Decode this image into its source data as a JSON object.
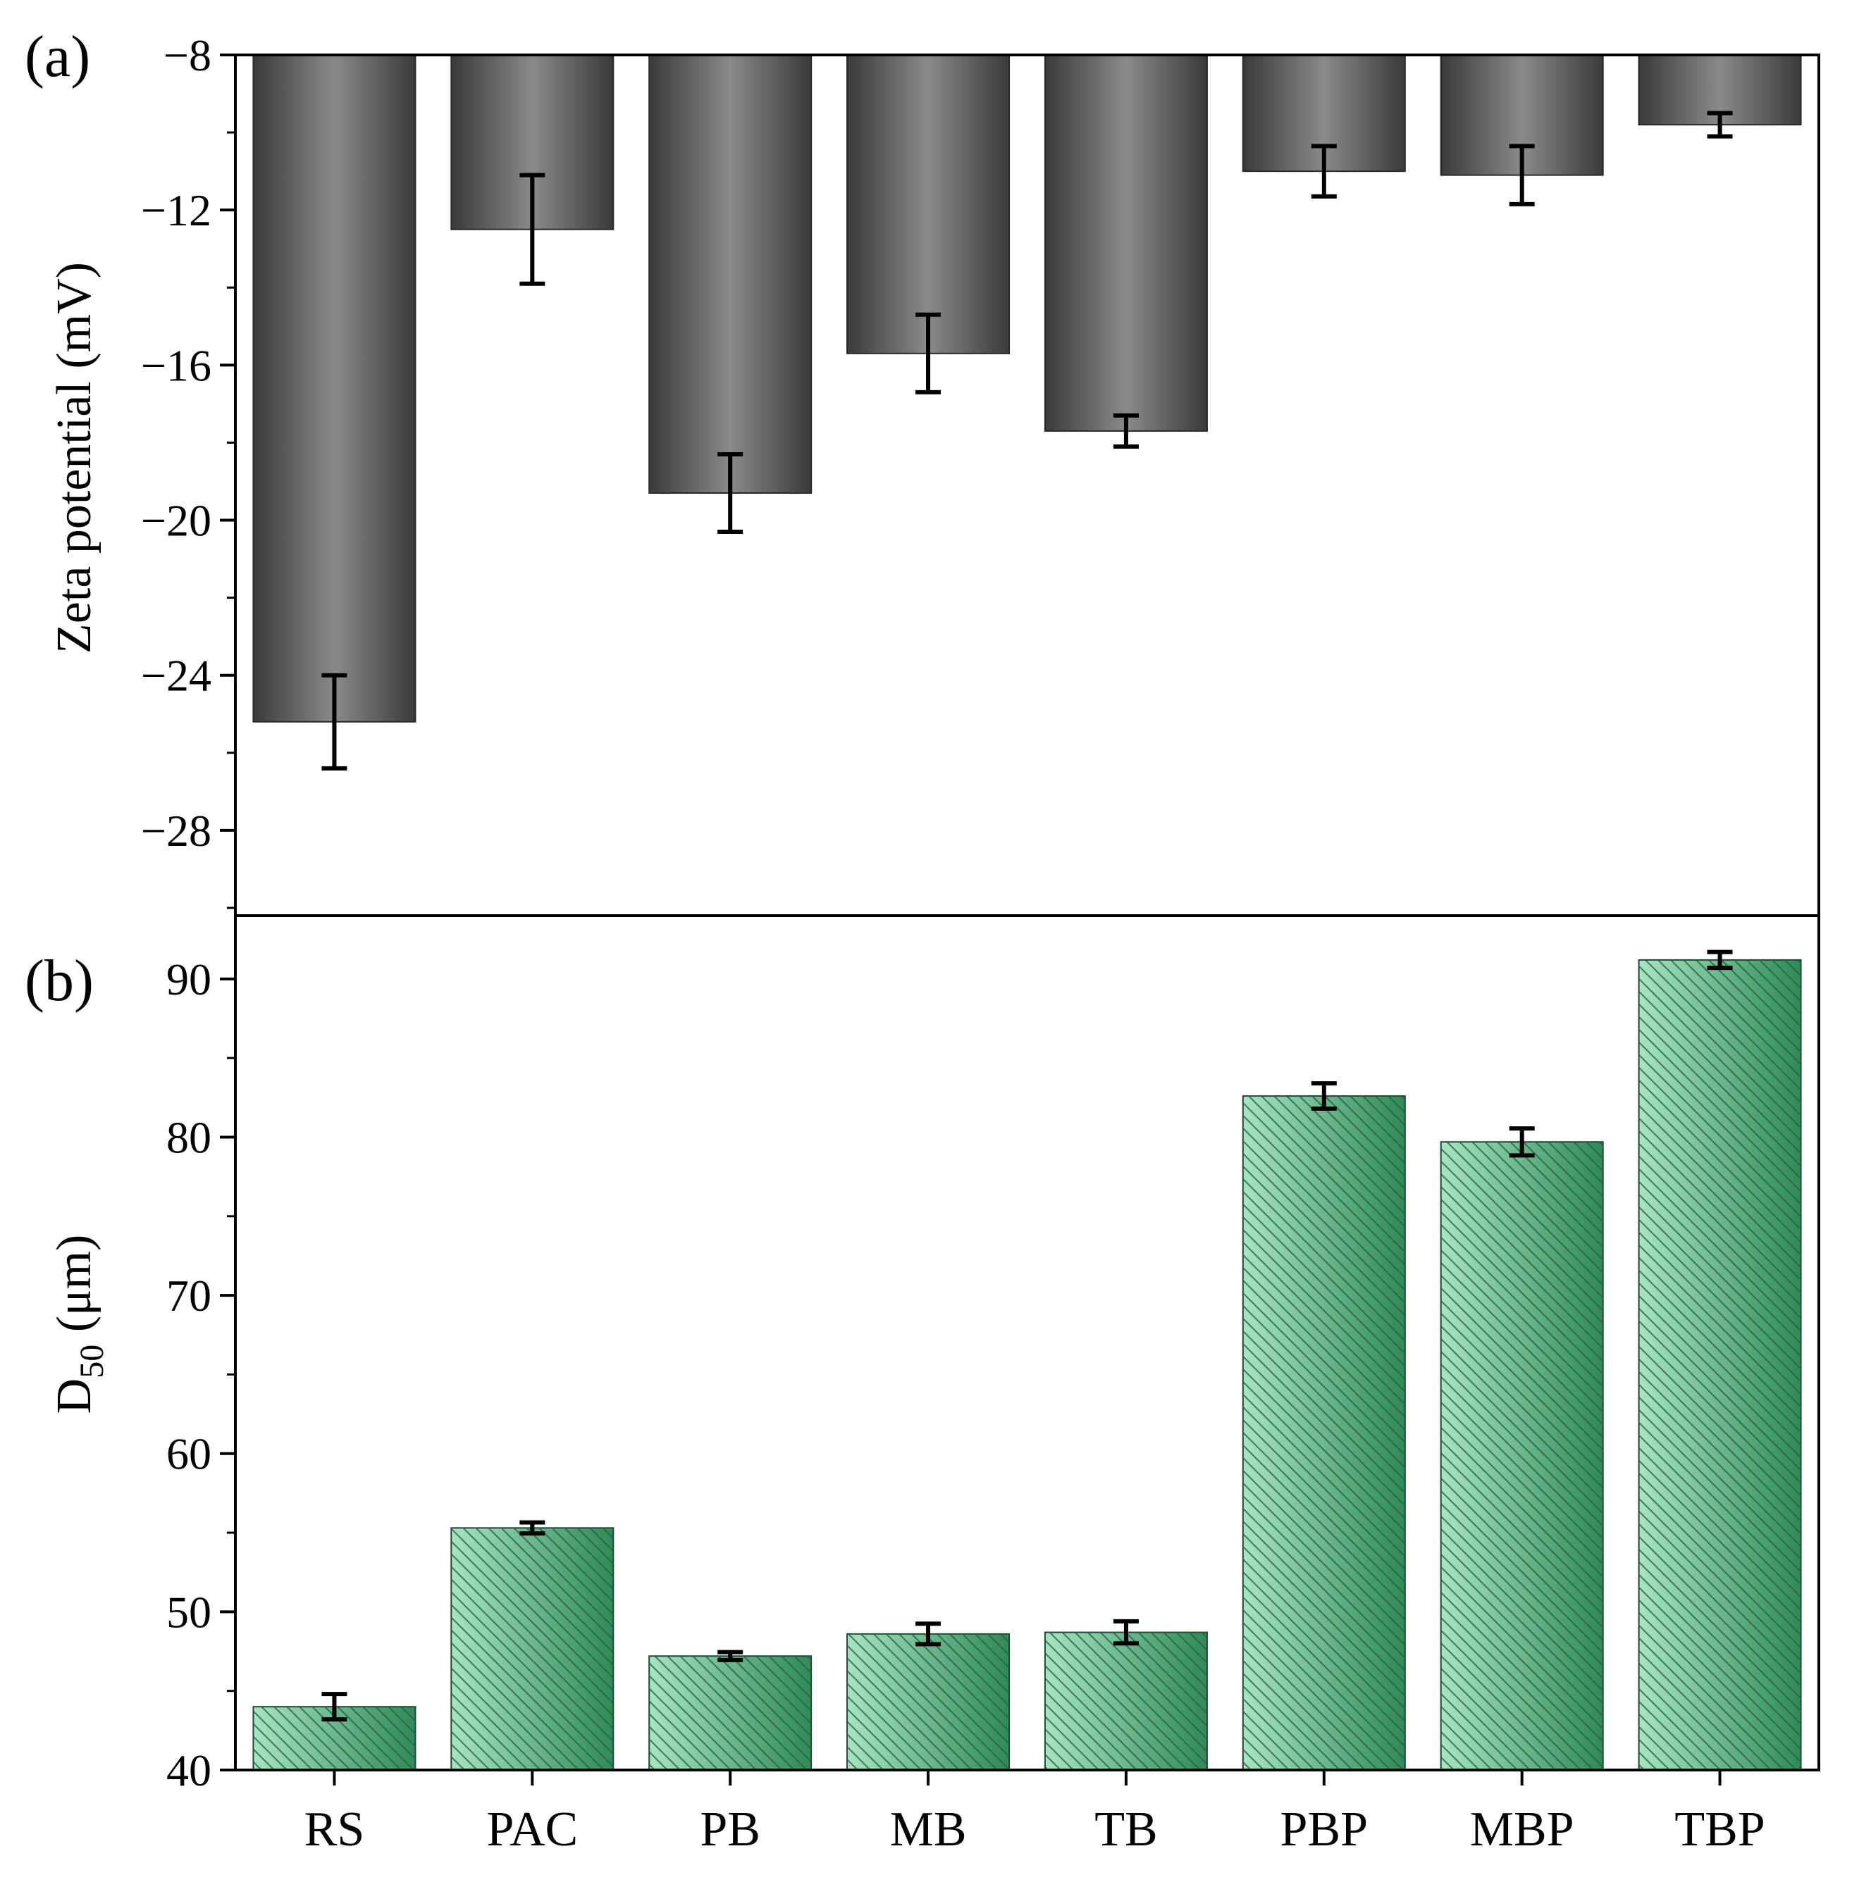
{
  "chart_data": [
    {
      "panel": "(a)",
      "type": "bar",
      "title": "",
      "ylabel": "Zeta potential (mV)",
      "xlabel": "",
      "ylim": [
        -30.2,
        -8
      ],
      "yticks": [
        -8,
        -12,
        -16,
        -20,
        -24,
        -28
      ],
      "ytick_labels": [
        "−8",
        "−12",
        "−16",
        "−20",
        "−24",
        "−28"
      ],
      "categories": [
        "RS",
        "PAC",
        "PB",
        "MB",
        "TB",
        "PBP",
        "MBP",
        "TBP"
      ],
      "values": [
        -25.2,
        -12.5,
        -19.3,
        -15.7,
        -17.7,
        -11.0,
        -11.1,
        -9.8
      ],
      "errors": [
        1.2,
        1.4,
        1.0,
        1.0,
        0.4,
        0.65,
        0.75,
        0.3
      ],
      "colors": {
        "bar_center": "#8a8a8a",
        "bar_edge": "#3a3a3a"
      }
    },
    {
      "panel": "(b)",
      "type": "bar",
      "title": "",
      "ylabel": "D50 (μm)",
      "ylabel_main": "D",
      "ylabel_sub": "50",
      "ylabel_unit": " (μm)",
      "xlabel": "",
      "ylim": [
        40,
        94
      ],
      "yticks": [
        40,
        50,
        60,
        70,
        80,
        90
      ],
      "ytick_labels": [
        "40",
        "50",
        "60",
        "70",
        "80",
        "90"
      ],
      "categories": [
        "RS",
        "PAC",
        "PB",
        "MB",
        "TB",
        "PBP",
        "MBP",
        "TBP"
      ],
      "values": [
        44.0,
        55.3,
        47.2,
        48.6,
        48.7,
        82.6,
        79.7,
        91.2
      ],
      "errors": [
        0.8,
        0.35,
        0.25,
        0.65,
        0.7,
        0.8,
        0.85,
        0.5
      ],
      "colors": {
        "bar_light": "#a6e6c2",
        "bar_dark": "#2e8b57",
        "hatch": "#2f5a44"
      }
    }
  ]
}
